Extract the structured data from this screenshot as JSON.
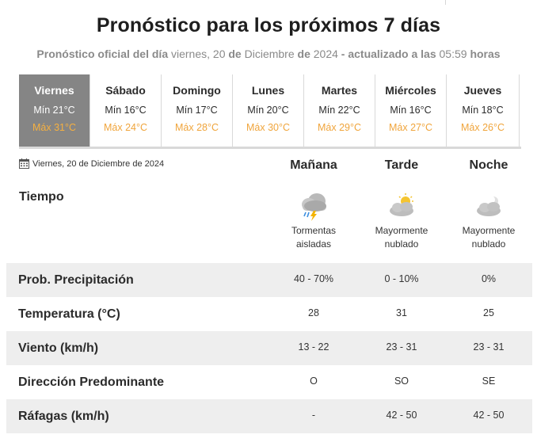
{
  "header": {
    "title": "Pronóstico para los próximos 7 días",
    "subtitle": {
      "part1": "Pronóstico oficial del día",
      "weekday": "viernes, 20",
      "de1": "de",
      "month": "Diciembre",
      "de2": "de",
      "year": "2024",
      "updated": "- actualizado a las",
      "time": "05:59",
      "horas": "horas"
    }
  },
  "days": [
    {
      "name": "Viernes",
      "min": "Mín 21°C",
      "max": "Máx 31°C",
      "active": true
    },
    {
      "name": "Sábado",
      "min": "Mín 16°C",
      "max": "Máx 24°C"
    },
    {
      "name": "Domingo",
      "min": "Mín 17°C",
      "max": "Máx 28°C"
    },
    {
      "name": "Lunes",
      "min": "Mín 20°C",
      "max": "Máx 30°C"
    },
    {
      "name": "Martes",
      "min": "Mín 22°C",
      "max": "Máx 29°C"
    },
    {
      "name": "Miércoles",
      "min": "Mín 16°C",
      "max": "Máx 27°C"
    },
    {
      "name": "Jueves",
      "min": "Mín 18°C",
      "max": "Máx 26°C"
    }
  ],
  "detail": {
    "date": "Viernes, 20 de Diciembre de 2024",
    "periods": [
      "Mañana",
      "Tarde",
      "Noche"
    ],
    "tiempo_label": "Tiempo",
    "conditions": [
      {
        "icon": "storm-cloud-icon",
        "line1": "Tormentas",
        "line2": "aisladas"
      },
      {
        "icon": "partly-cloudy-day-icon",
        "line1": "Mayormente",
        "line2": "nublado"
      },
      {
        "icon": "partly-cloudy-night-icon",
        "line1": "Mayormente",
        "line2": "nublado"
      }
    ],
    "rows": [
      {
        "label": "Prob. Precipitación",
        "values": [
          "40 - 70%",
          "0 - 10%",
          "0%"
        ]
      },
      {
        "label": "Temperatura (°C)",
        "values": [
          "28",
          "31",
          "25"
        ]
      },
      {
        "label": "Viento (km/h)",
        "values": [
          "13 - 22",
          "23 - 31",
          "23 - 31"
        ]
      },
      {
        "label": "Dirección Predominante",
        "values": [
          "O",
          "SO",
          "SE"
        ]
      },
      {
        "label": "Ráfagas (km/h)",
        "values": [
          "-",
          "42 - 50",
          "42 - 50"
        ]
      }
    ]
  },
  "colors": {
    "active_tab_bg": "#858585",
    "max_temp": "#f0a53c",
    "row_shade": "#eeeeee"
  }
}
